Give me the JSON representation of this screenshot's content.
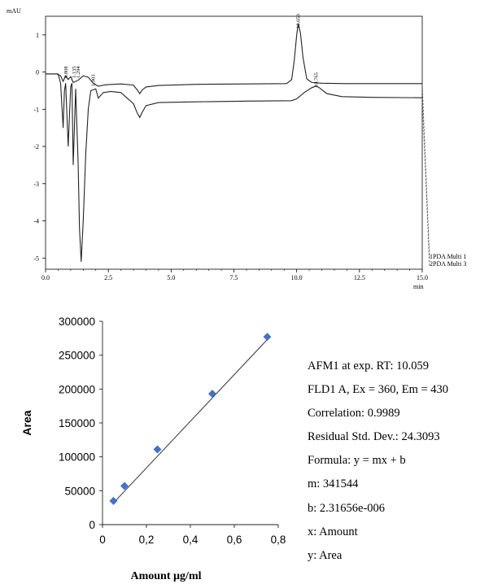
{
  "chart_data": [
    {
      "type": "line",
      "title": "",
      "xlabel": "min",
      "ylabel": "mAU",
      "xlim": [
        0,
        15
      ],
      "ylim": [
        -5.3,
        1.5
      ],
      "x_ticks": [
        "0.0",
        "2.5",
        "5.0",
        "7.5",
        "10.0",
        "12.5",
        "15.0"
      ],
      "y_ticks": [
        "1",
        "0",
        "-1",
        "-2",
        "-3",
        "-4",
        "-5"
      ],
      "grid": false,
      "series": [
        {
          "name": "1PDA Multi 1",
          "x": [
            0.0,
            0.45,
            0.6,
            0.7,
            0.8,
            0.9,
            1.0,
            1.1,
            1.3,
            1.5,
            1.6,
            1.7,
            1.9,
            2.1,
            2.4,
            3.0,
            3.5,
            3.65,
            3.75,
            3.85,
            4.0,
            4.5,
            6.0,
            8.0,
            9.6,
            9.8,
            9.9,
            10.0,
            10.059,
            10.15,
            10.25,
            10.4,
            10.6,
            11.0,
            12.0,
            13.5,
            15.0
          ],
          "y": [
            -0.05,
            -0.05,
            -0.1,
            -0.25,
            -0.1,
            -0.2,
            -0.12,
            -0.28,
            -0.22,
            -0.1,
            -0.12,
            -0.14,
            -0.3,
            -0.38,
            -0.34,
            -0.32,
            -0.35,
            -0.48,
            -0.58,
            -0.48,
            -0.4,
            -0.36,
            -0.33,
            -0.32,
            -0.31,
            -0.2,
            0.3,
            1.0,
            1.3,
            1.05,
            0.4,
            -0.18,
            -0.28,
            -0.3,
            -0.31,
            -0.31,
            -0.31
          ]
        },
        {
          "name": "2PDA Multi 3",
          "x": [
            0.0,
            0.5,
            0.6,
            0.7,
            0.75,
            0.8,
            0.9,
            1.0,
            1.05,
            1.1,
            1.2,
            1.3,
            1.35,
            1.42,
            1.5,
            1.6,
            1.7,
            1.8,
            2.0,
            2.1,
            2.3,
            2.6,
            3.0,
            3.5,
            3.65,
            3.75,
            3.85,
            4.0,
            4.5,
            6.0,
            8.0,
            9.8,
            10.0,
            10.3,
            10.6,
            10.765,
            10.9,
            11.2,
            11.8,
            13.0,
            15.0
          ],
          "y": [
            -0.05,
            -0.05,
            -0.3,
            -1.5,
            -0.5,
            -0.3,
            -2.0,
            -0.4,
            -0.3,
            -2.5,
            -0.45,
            -2.5,
            -4.2,
            -5.1,
            -4.0,
            -2.2,
            -1.0,
            -0.5,
            -0.45,
            -0.7,
            -0.55,
            -0.52,
            -0.55,
            -0.85,
            -1.1,
            -1.22,
            -1.08,
            -0.9,
            -0.82,
            -0.8,
            -0.78,
            -0.77,
            -0.72,
            -0.55,
            -0.42,
            -0.38,
            -0.42,
            -0.58,
            -0.66,
            -0.68,
            -0.69
          ]
        }
      ],
      "peak_labels": [
        {
          "x": 0.808,
          "text": "0.808"
        },
        {
          "x": 1.135,
          "text": "1.135"
        },
        {
          "x": 1.294,
          "text": "1.294"
        },
        {
          "x": 1.903,
          "text": "1.903"
        },
        {
          "x": 10.059,
          "text": "10.059"
        },
        {
          "x": 10.765,
          "text": "10.765"
        }
      ],
      "legend_placement": "bottom-right"
    },
    {
      "type": "scatter",
      "title": "",
      "xlabel": "Amount µg/ml",
      "ylabel": "Area",
      "xlim": [
        0,
        0.8
      ],
      "ylim": [
        0,
        300000
      ],
      "x_ticks": [
        "0",
        "0,2",
        "0,4",
        "0,6",
        "0,8"
      ],
      "y_ticks": [
        "0",
        "50000",
        "100000",
        "150000",
        "200000",
        "250000",
        "300000"
      ],
      "grid": false,
      "series": [
        {
          "x": [
            0.05,
            0.1,
            0.25,
            0.5,
            0.75
          ],
          "y": [
            35000,
            57000,
            111000,
            193000,
            277000
          ]
        }
      ],
      "fit_line": {
        "x": [
          0.05,
          0.75
        ],
        "y": [
          32000,
          273000
        ]
      },
      "marker_color": "#4472c4"
    }
  ],
  "info": {
    "lines": [
      "AFM1 at exp. RT: 10.059",
      "FLD1 A, Ex = 360, Em = 430",
      "Correlation: 0.9989",
      "Residual Std. Dev.: 24.3093",
      "Formula: y = mx + b",
      "m: 341544",
      "b: 2.31656e-006",
      "x: Amount",
      "y: Area"
    ]
  }
}
